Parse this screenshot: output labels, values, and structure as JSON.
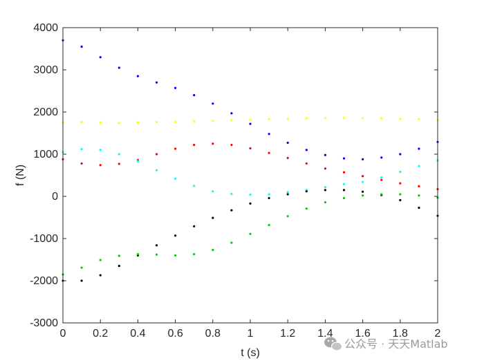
{
  "watermark": {
    "text": "公众号 · 天天Matlab",
    "icon": "wechat-icon"
  },
  "chart_data": {
    "type": "scatter",
    "title": "",
    "xlabel": "t (s)",
    "ylabel": "f (N)",
    "xlim": [
      0,
      2
    ],
    "ylim": [
      -3000,
      4000
    ],
    "xticks": [
      0,
      0.2,
      0.4,
      0.6,
      0.8,
      1,
      1.2,
      1.4,
      1.6,
      1.8,
      2
    ],
    "yticks": [
      -3000,
      -2000,
      -1000,
      0,
      1000,
      2000,
      3000,
      4000
    ],
    "xtick_labels": [
      "0",
      "0.2",
      "0.4",
      "0.6",
      "0.8",
      "1",
      "1.2",
      "1.4",
      "1.6",
      "1.8",
      "2"
    ],
    "ytick_labels": [
      "-3000",
      "-2000",
      "-1000",
      "0",
      "1000",
      "2000",
      "3000",
      "4000"
    ],
    "grid": false,
    "box": true,
    "x": [
      0,
      0.1,
      0.2,
      0.3,
      0.4,
      0.5,
      0.6,
      0.7,
      0.8,
      0.9,
      1.0,
      1.1,
      1.2,
      1.3,
      1.4,
      1.5,
      1.6,
      1.7,
      1.8,
      1.9,
      2.0
    ],
    "series": [
      {
        "color": "#0000ff",
        "values": [
          3700,
          3550,
          3300,
          3050,
          2850,
          2700,
          2570,
          2400,
          2200,
          1970,
          1720,
          1480,
          1270,
          1100,
          980,
          900,
          880,
          920,
          1000,
          1130,
          1290
        ]
      },
      {
        "color": "#ffff00",
        "values": [
          1750,
          1760,
          1750,
          1740,
          1750,
          1760,
          1770,
          1780,
          1790,
          1800,
          1820,
          1830,
          1840,
          1850,
          1860,
          1860,
          1860,
          1850,
          1840,
          1830,
          1810
        ]
      },
      {
        "color": "#ff0000",
        "values": [
          880,
          780,
          740,
          770,
          860,
          1000,
          1130,
          1220,
          1250,
          1220,
          1140,
          1030,
          910,
          780,
          660,
          570,
          480,
          390,
          310,
          240,
          170
        ]
      },
      {
        "color": "#00ffff",
        "values": [
          1050,
          1120,
          1100,
          1000,
          830,
          620,
          420,
          250,
          120,
          60,
          40,
          50,
          100,
          150,
          220,
          290,
          340,
          450,
          580,
          720,
          850
        ]
      },
      {
        "color": "#000000",
        "values": [
          -2000,
          -2000,
          -1870,
          -1650,
          -1400,
          -1160,
          -930,
          -710,
          -510,
          -330,
          -170,
          -40,
          50,
          120,
          150,
          150,
          110,
          30,
          -90,
          -270,
          -460
        ]
      },
      {
        "color": "#00cc00",
        "values": [
          -1850,
          -1690,
          -1510,
          -1410,
          -1370,
          -1380,
          -1400,
          -1370,
          -1270,
          -1100,
          -890,
          -680,
          -470,
          -290,
          -140,
          -40,
          20,
          50,
          50,
          20,
          -30
        ]
      }
    ]
  }
}
